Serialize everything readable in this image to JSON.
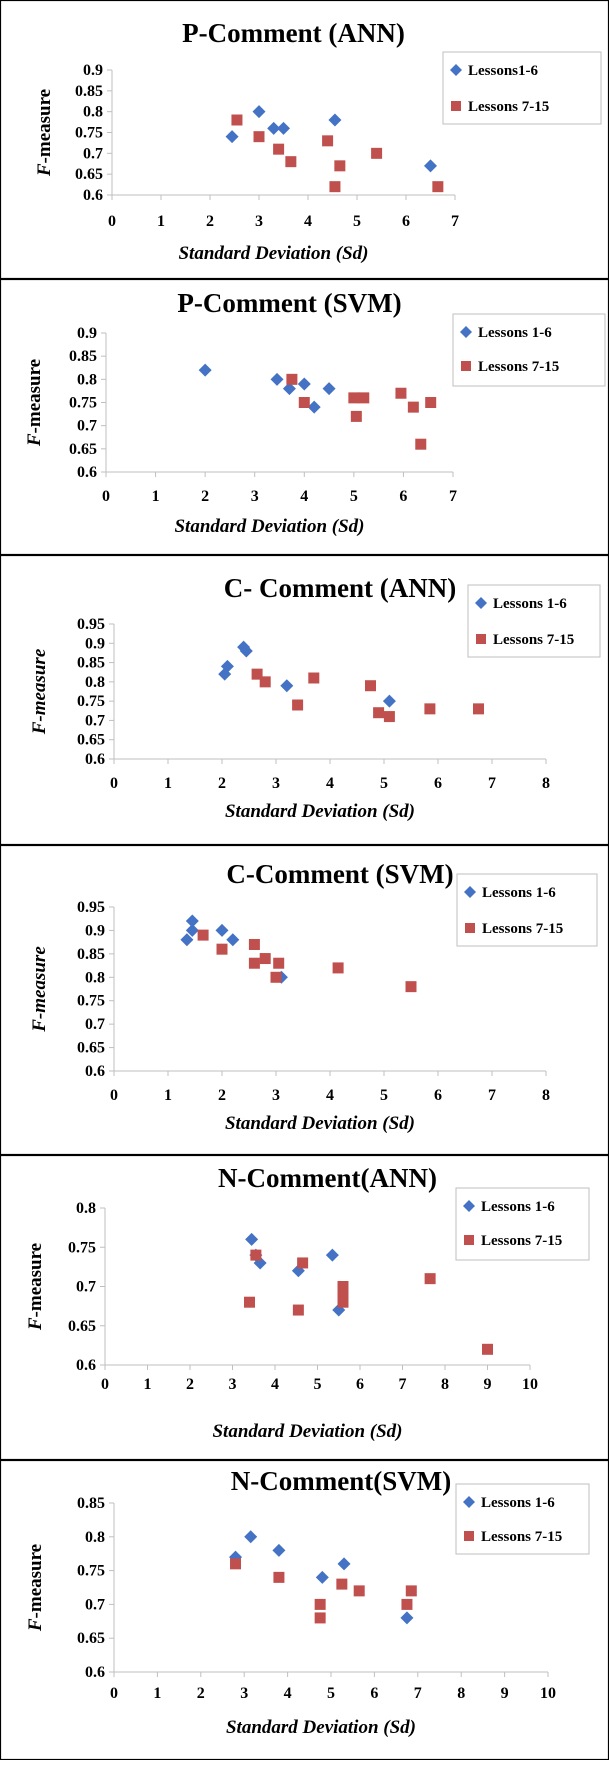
{
  "colors": {
    "lessons_1_6": "#4472c4",
    "lessons_7_15": "#c0504d",
    "axis": "#bfbfbf",
    "frame": "#000000"
  },
  "chart_data": [
    {
      "type": "scatter",
      "title": "P-Comment (ANN)",
      "xlabel": "Standard Deviation (Sd)",
      "ylabel": {
        "italic": "F",
        "rest": "-measure",
        "italic_all": false
      },
      "xlim": [
        0,
        7
      ],
      "ylim": [
        0.6,
        0.9
      ],
      "xticks": [
        "0",
        "1",
        "2",
        "3",
        "4",
        "5",
        "6",
        "7"
      ],
      "yticks": [
        "0.6",
        "0.65",
        "0.7",
        "0.75",
        "0.8",
        "0.85",
        "0.9"
      ],
      "legend": "top-right",
      "series": [
        {
          "name": "Lessons1-6",
          "marker": "diamond",
          "points": [
            [
              2.45,
              0.74
            ],
            [
              3.0,
              0.8
            ],
            [
              3.3,
              0.76
            ],
            [
              3.5,
              0.76
            ],
            [
              4.55,
              0.78
            ],
            [
              6.5,
              0.67
            ]
          ]
        },
        {
          "name": "Lessons 7-15",
          "marker": "square",
          "points": [
            [
              2.55,
              0.78
            ],
            [
              3.0,
              0.74
            ],
            [
              3.4,
              0.71
            ],
            [
              3.65,
              0.68
            ],
            [
              4.4,
              0.73
            ],
            [
              4.55,
              0.62
            ],
            [
              4.65,
              0.67
            ],
            [
              5.4,
              0.7
            ],
            [
              6.65,
              0.62
            ]
          ]
        }
      ]
    },
    {
      "type": "scatter",
      "title": "P-Comment (SVM)",
      "xlabel": "Standard Deviation (Sd)",
      "ylabel": {
        "italic": "F",
        "rest": "-measure",
        "italic_all": false
      },
      "xlim": [
        0,
        7
      ],
      "ylim": [
        0.6,
        0.9
      ],
      "xticks": [
        "0",
        "1",
        "2",
        "3",
        "4",
        "5",
        "6",
        "7"
      ],
      "yticks": [
        "0.6",
        "0.65",
        "0.7",
        "0.75",
        "0.8",
        "0.85",
        "0.9"
      ],
      "legend": "top-right",
      "series": [
        {
          "name": "Lessons 1-6",
          "marker": "diamond",
          "points": [
            [
              2.0,
              0.82
            ],
            [
              3.45,
              0.8
            ],
            [
              3.7,
              0.78
            ],
            [
              4.0,
              0.79
            ],
            [
              4.2,
              0.74
            ],
            [
              4.5,
              0.78
            ]
          ]
        },
        {
          "name": "Lessons 7-15",
          "marker": "square",
          "points": [
            [
              3.75,
              0.8
            ],
            [
              4.0,
              0.75
            ],
            [
              5.0,
              0.76
            ],
            [
              5.2,
              0.76
            ],
            [
              5.05,
              0.72
            ],
            [
              5.95,
              0.77
            ],
            [
              6.2,
              0.74
            ],
            [
              6.55,
              0.75
            ],
            [
              6.35,
              0.66
            ]
          ]
        }
      ]
    },
    {
      "type": "scatter",
      "title": "C- Comment (ANN)",
      "xlabel": "Standard Deviation (Sd)",
      "ylabel": {
        "italic": "F-measure",
        "rest": "",
        "italic_all": true
      },
      "xlim": [
        0,
        8
      ],
      "ylim": [
        0.6,
        0.95
      ],
      "xticks": [
        "0",
        "1",
        "2",
        "3",
        "4",
        "5",
        "6",
        "7",
        "8"
      ],
      "yticks": [
        "0.6",
        "0.65",
        "0.7",
        "0.75",
        "0.8",
        "0.85",
        "0.9",
        "0.95"
      ],
      "legend": "top-right",
      "series": [
        {
          "name": "Lessons 1-6",
          "marker": "diamond",
          "points": [
            [
              2.05,
              0.82
            ],
            [
              2.1,
              0.84
            ],
            [
              2.4,
              0.89
            ],
            [
              2.45,
              0.88
            ],
            [
              3.2,
              0.79
            ],
            [
              5.1,
              0.75
            ]
          ]
        },
        {
          "name": "Lessons 7-15",
          "marker": "square",
          "points": [
            [
              2.65,
              0.82
            ],
            [
              2.8,
              0.8
            ],
            [
              3.4,
              0.74
            ],
            [
              3.7,
              0.81
            ],
            [
              4.75,
              0.79
            ],
            [
              4.9,
              0.72
            ],
            [
              5.1,
              0.71
            ],
            [
              5.85,
              0.73
            ],
            [
              6.75,
              0.73
            ]
          ]
        }
      ]
    },
    {
      "type": "scatter",
      "title": "C-Comment (SVM)",
      "xlabel": "Standard Deviation (Sd)",
      "ylabel": {
        "italic": "F-measure",
        "rest": "",
        "italic_all": true
      },
      "xlim": [
        0,
        8
      ],
      "ylim": [
        0.6,
        0.95
      ],
      "xticks": [
        "0",
        "1",
        "2",
        "3",
        "4",
        "5",
        "6",
        "7",
        "8"
      ],
      "yticks": [
        "0.6",
        "0.65",
        "0.7",
        "0.75",
        "0.8",
        "0.85",
        "0.9",
        "0.95"
      ],
      "legend": "top-right",
      "series": [
        {
          "name": "Lessons 1-6",
          "marker": "diamond",
          "points": [
            [
              1.35,
              0.88
            ],
            [
              1.45,
              0.92
            ],
            [
              1.45,
              0.9
            ],
            [
              2.0,
              0.9
            ],
            [
              2.2,
              0.88
            ],
            [
              3.1,
              0.8
            ]
          ]
        },
        {
          "name": "Lessons 7-15",
          "marker": "square",
          "points": [
            [
              1.65,
              0.89
            ],
            [
              2.0,
              0.86
            ],
            [
              2.6,
              0.87
            ],
            [
              2.6,
              0.83
            ],
            [
              2.8,
              0.84
            ],
            [
              3.05,
              0.83
            ],
            [
              3.0,
              0.8
            ],
            [
              4.15,
              0.82
            ],
            [
              5.5,
              0.78
            ]
          ]
        }
      ]
    },
    {
      "type": "scatter",
      "title": "N-Comment(ANN)",
      "xlabel": "Standard Deviation (Sd)",
      "ylabel": {
        "italic": "F",
        "rest": "-measure",
        "italic_all": false
      },
      "xlim": [
        0,
        10
      ],
      "ylim": [
        0.6,
        0.8
      ],
      "xticks": [
        "0",
        "1",
        "2",
        "3",
        "4",
        "5",
        "6",
        "7",
        "8",
        "9",
        "10"
      ],
      "yticks": [
        "0.6",
        "0.65",
        "0.7",
        "0.75",
        "0.8"
      ],
      "legend": "top-right",
      "series": [
        {
          "name": "Lessons 1-6",
          "marker": "diamond",
          "points": [
            [
              3.45,
              0.76
            ],
            [
              3.55,
              0.74
            ],
            [
              3.65,
              0.73
            ],
            [
              4.55,
              0.72
            ],
            [
              5.35,
              0.74
            ],
            [
              5.5,
              0.67
            ]
          ]
        },
        {
          "name": "Lessons 7-15",
          "marker": "square",
          "points": [
            [
              3.4,
              0.68
            ],
            [
              3.55,
              0.74
            ],
            [
              4.55,
              0.67
            ],
            [
              4.65,
              0.73
            ],
            [
              5.6,
              0.7
            ],
            [
              5.6,
              0.69
            ],
            [
              5.6,
              0.68
            ],
            [
              7.65,
              0.71
            ],
            [
              9.0,
              0.62
            ]
          ]
        }
      ]
    },
    {
      "type": "scatter",
      "title": "N-Comment(SVM)",
      "xlabel": "Standard Deviation (Sd)",
      "ylabel": {
        "italic": "F",
        "rest": "-measure",
        "italic_all": false
      },
      "xlim": [
        0,
        10
      ],
      "ylim": [
        0.6,
        0.85
      ],
      "xticks": [
        "0",
        "1",
        "2",
        "3",
        "4",
        "5",
        "6",
        "7",
        "8",
        "9",
        "10"
      ],
      "yticks": [
        "0.6",
        "0.65",
        "0.7",
        "0.75",
        "0.8",
        "0.85"
      ],
      "legend": "top-right",
      "series": [
        {
          "name": "Lessons 1-6",
          "marker": "diamond",
          "points": [
            [
              2.8,
              0.77
            ],
            [
              3.15,
              0.8
            ],
            [
              3.8,
              0.78
            ],
            [
              4.8,
              0.74
            ],
            [
              5.3,
              0.76
            ],
            [
              6.75,
              0.68
            ]
          ]
        },
        {
          "name": "Lessons 7-15",
          "marker": "square",
          "points": [
            [
              2.8,
              0.76
            ],
            [
              3.8,
              0.74
            ],
            [
              4.75,
              0.7
            ],
            [
              4.75,
              0.68
            ],
            [
              5.25,
              0.73
            ],
            [
              5.65,
              0.72
            ],
            [
              6.75,
              0.7
            ],
            [
              6.85,
              0.72
            ]
          ]
        }
      ]
    }
  ]
}
